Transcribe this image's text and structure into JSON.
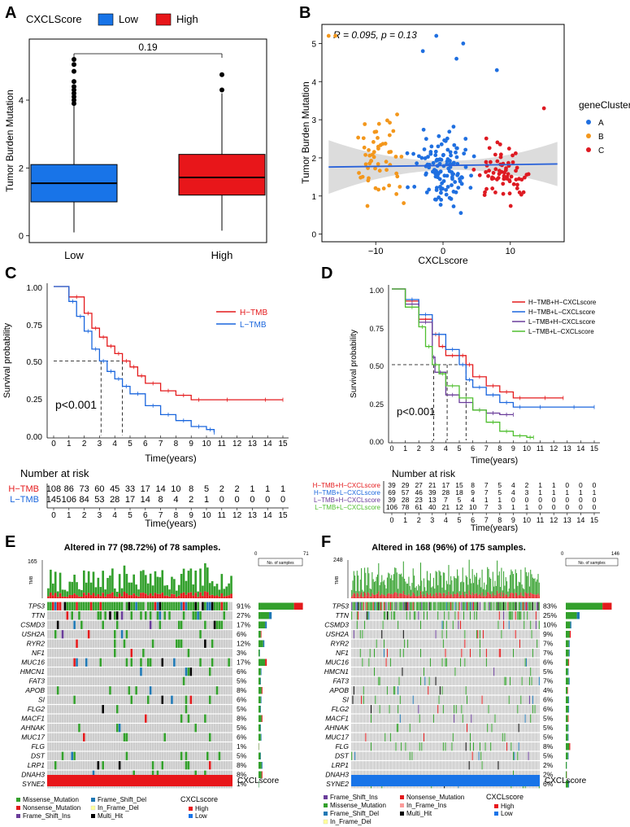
{
  "colors": {
    "low": "#1874e8",
    "high": "#e8161a",
    "gc_a": "#1f6fe0",
    "gc_b": "#f3971c",
    "gc_c": "#de1a22",
    "risk_h": "#e41a1c",
    "risk_l": "#1a66dd",
    "d1": "#e41a1c",
    "d2": "#1a66dd",
    "d3": "#6a3d9a",
    "d4": "#4fbf2f",
    "missense": "#33a02c",
    "nonsense": "#e31a1c",
    "fsins": "#6a3d9a",
    "fsdel": "#1f78b4",
    "ifdel": "#ffff99",
    "ifins": "#fb9a99",
    "multi": "#000000",
    "grey_cell": "#cccccc"
  },
  "chart_data": [
    {
      "panel": "A",
      "type": "box",
      "legend_title": "CXCLScore",
      "legend": [
        "Low",
        "High"
      ],
      "categories": [
        "Low",
        "High"
      ],
      "boxes": [
        {
          "name": "Low",
          "min": 0.1,
          "q1": 1.0,
          "median": 1.55,
          "q3": 2.1,
          "max": 4.3,
          "outliers": [
            5.2,
            5.05,
            4.85,
            4.55,
            4.4,
            4.3,
            4.2,
            4.1,
            4.0,
            3.9
          ]
        },
        {
          "name": "High",
          "min": 0.15,
          "q1": 1.2,
          "median": 1.72,
          "q3": 2.4,
          "max": 4.2,
          "outliers": [
            4.75,
            4.3
          ]
        }
      ],
      "pvalue": "0.19",
      "ylabel": "Tumor Burden Mutation",
      "yticks": [
        0,
        2,
        4
      ],
      "ylim": [
        -0.2,
        5.8
      ]
    },
    {
      "panel": "B",
      "type": "scatter",
      "annotation": "R = 0.095, p = 0.13",
      "xlabel": "CXCLscore",
      "ylabel": "Tumor Burden Mutation",
      "xticks": [
        -10,
        0,
        10
      ],
      "yticks": [
        0,
        1,
        2,
        3,
        4,
        5
      ],
      "xlim": [
        -18,
        18
      ],
      "ylim": [
        -0.2,
        5.5
      ],
      "legend_title": "geneCluster",
      "legend": [
        "A",
        "B",
        "C"
      ],
      "fit": {
        "x0": -17,
        "y0": 1.76,
        "x1": 17,
        "y1": 1.84
      }
    },
    {
      "panel": "C",
      "type": "km",
      "ylabel": "Survival probability",
      "xlabel": "Time(years)",
      "xticks": [
        "0",
        "1",
        "2",
        "3",
        "4",
        "5",
        "6",
        "7",
        "8",
        "9",
        "10",
        "11",
        "12",
        "13",
        "14",
        "15"
      ],
      "yticks": [
        "0.00",
        "0.25",
        "0.50",
        "0.75",
        "1.00"
      ],
      "pvalue": "p<0.001",
      "legend": [
        "H−TMB",
        "L−TMB"
      ],
      "median_times": [
        3.1,
        4.5
      ],
      "series": [
        {
          "name": "H-TMB",
          "t": [
            0,
            1,
            2,
            2.5,
            3,
            3.5,
            4,
            4.5,
            5,
            5.5,
            6,
            7,
            8,
            9,
            10,
            12.7,
            15
          ],
          "s": [
            1,
            0.93,
            0.82,
            0.72,
            0.66,
            0.6,
            0.55,
            0.5,
            0.46,
            0.4,
            0.35,
            0.3,
            0.27,
            0.24,
            0.24,
            0.24,
            0.24
          ]
        },
        {
          "name": "L-TMB",
          "t": [
            0,
            1,
            1.5,
            2,
            2.5,
            3,
            3.5,
            4,
            4.5,
            5,
            6,
            7,
            8,
            9,
            10,
            10.5
          ],
          "s": [
            1,
            0.9,
            0.8,
            0.7,
            0.58,
            0.5,
            0.43,
            0.38,
            0.33,
            0.28,
            0.2,
            0.14,
            0.1,
            0.06,
            0.04,
            0.02
          ]
        }
      ],
      "risk_title": "Number at risk",
      "risk_labels": [
        "H−TMB",
        "L−TMB"
      ],
      "risk_values": [
        [
          "108",
          "86",
          "73",
          "60",
          "45",
          "33",
          "17",
          "14",
          "10",
          "8",
          "5",
          "2",
          "2",
          "1",
          "1",
          "1"
        ],
        [
          "145",
          "106",
          "84",
          "53",
          "28",
          "17",
          "14",
          "8",
          "4",
          "2",
          "1",
          "0",
          "0",
          "0",
          "0",
          "0"
        ]
      ]
    },
    {
      "panel": "D",
      "type": "km",
      "ylabel": "Survival probability",
      "xlabel": "Time(years)",
      "xticks": [
        "0",
        "1",
        "2",
        "3",
        "4",
        "5",
        "6",
        "7",
        "8",
        "9",
        "10",
        "11",
        "12",
        "13",
        "14",
        "15"
      ],
      "yticks": [
        "0.00",
        "0.25",
        "0.50",
        "0.75",
        "1.00"
      ],
      "pvalue": "p<0.001",
      "legend": [
        "H−TMB+H−CXCLscore",
        "H−TMB+L−CXCLscore",
        "L−TMB+H−CXCLscore",
        "L−TMB+L−CXCLscore"
      ],
      "median_times": [
        3.1,
        4.1,
        5.5
      ],
      "series": [
        {
          "name": "H-TMB+H-CXCLscore",
          "t": [
            0,
            1,
            2,
            3,
            3.5,
            4,
            5,
            5.5,
            6,
            7,
            8,
            9,
            10,
            12.7
          ],
          "s": [
            1,
            0.92,
            0.8,
            0.7,
            0.62,
            0.56,
            0.56,
            0.5,
            0.42,
            0.36,
            0.32,
            0.28,
            0.28,
            0.28
          ]
        },
        {
          "name": "H-TMB+L-CXCLscore",
          "t": [
            0,
            1,
            2,
            3,
            4,
            5,
            5.5,
            6,
            7,
            8,
            9,
            10,
            12,
            15
          ],
          "s": [
            1,
            0.93,
            0.83,
            0.7,
            0.6,
            0.5,
            0.4,
            0.35,
            0.3,
            0.25,
            0.22,
            0.22,
            0.22,
            0.22
          ]
        },
        {
          "name": "L-TMB+H-CXCLscore",
          "t": [
            0,
            1,
            2,
            3,
            3.2,
            4,
            5,
            6,
            7,
            8,
            9
          ],
          "s": [
            1,
            0.9,
            0.78,
            0.55,
            0.45,
            0.3,
            0.25,
            0.2,
            0.18,
            0.17,
            0.17
          ]
        },
        {
          "name": "L-TMB+L-CXCLscore",
          "t": [
            0,
            1,
            2,
            2.5,
            3,
            3.5,
            4,
            5,
            6,
            7,
            8,
            9,
            10,
            10.5
          ],
          "s": [
            1,
            0.88,
            0.75,
            0.62,
            0.5,
            0.44,
            0.36,
            0.28,
            0.2,
            0.12,
            0.06,
            0.03,
            0.02,
            0.02
          ]
        }
      ],
      "risk_title": "Number at risk",
      "risk_labels": [
        "H−TMB+H−CXCLscore",
        "H−TMB+L−CXCLscore",
        "L−TMB+H−CXCLscore",
        "L−TMB+L−CXCLscore"
      ],
      "risk_values": [
        [
          "39",
          "29",
          "27",
          "21",
          "17",
          "15",
          "8",
          "7",
          "5",
          "4",
          "2",
          "1",
          "1",
          "0",
          "0",
          "0"
        ],
        [
          "69",
          "57",
          "46",
          "39",
          "28",
          "18",
          "9",
          "7",
          "5",
          "4",
          "3",
          "1",
          "1",
          "1",
          "1",
          "1"
        ],
        [
          "39",
          "28",
          "23",
          "13",
          "7",
          "5",
          "4",
          "1",
          "1",
          "0",
          "0",
          "0",
          "0",
          "0",
          "0",
          "0"
        ],
        [
          "106",
          "78",
          "61",
          "40",
          "21",
          "12",
          "10",
          "7",
          "3",
          "1",
          "1",
          "0",
          "0",
          "0",
          "0",
          "0"
        ]
      ]
    },
    {
      "panel": "E",
      "type": "oncoplot",
      "title": "Altered in 77 (98.72%) of 78 samples.",
      "tmb_max": "165",
      "tmb_label": "TMB",
      "nsamples_max": "71",
      "nsamples_zero": "0",
      "nsamples_label": "No. of samples",
      "genes": [
        "TP53",
        "TTN",
        "CSMD3",
        "USH2A",
        "RYR2",
        "NF1",
        "MUC16",
        "HMCN1",
        "FAT3",
        "APOB",
        "SI",
        "FLG2",
        "MACF1",
        "AHNAK",
        "MUC17",
        "FLG",
        "DST",
        "LRP1",
        "DNAH3",
        "SYNE2"
      ],
      "pct": [
        "91%",
        "27%",
        "17%",
        "6%",
        "12%",
        "3%",
        "17%",
        "6%",
        "5%",
        "8%",
        "6%",
        "5%",
        "8%",
        "5%",
        "6%",
        "1%",
        "5%",
        "8%",
        "8%",
        "1%"
      ],
      "score_label": "CXCLscore",
      "legend_items": [
        "Missense_Mutation",
        "Nonsense_Mutation",
        "Frame_Shift_Ins",
        "Frame_Shift_Del",
        "In_Frame_Del",
        "Multi_Hit"
      ],
      "legend_title": "CXCLscore",
      "score_levels": [
        "High",
        "Low"
      ]
    },
    {
      "panel": "F",
      "type": "oncoplot",
      "title": "Altered in 168 (96%) of 175 samples.",
      "tmb_max": "248",
      "tmb_label": "TMB",
      "nsamples_max": "146",
      "nsamples_zero": "0",
      "nsamples_label": "No. of samples",
      "genes": [
        "TP53",
        "TTN",
        "CSMD3",
        "USH2A",
        "RYR2",
        "NF1",
        "MUC16",
        "HMCN1",
        "FAT3",
        "APOB",
        "SI",
        "FLG2",
        "MACF1",
        "AHNAK",
        "MUC17",
        "FLG",
        "DST",
        "LRP1",
        "DNAH3",
        "SYNE2"
      ],
      "pct": [
        "83%",
        "25%",
        "10%",
        "9%",
        "7%",
        "7%",
        "6%",
        "5%",
        "7%",
        "4%",
        "6%",
        "6%",
        "5%",
        "5%",
        "5%",
        "8%",
        "5%",
        "2%",
        "2%",
        "6%"
      ],
      "score_label": "CXCLscore",
      "legend_items": [
        "Frame_Shift_Ins",
        "Missense_Mutation",
        "Frame_Shift_Del",
        "In_Frame_Del",
        "Nonsense_Mutation",
        "In_Frame_Ins",
        "Multi_Hit"
      ],
      "legend_title": "CXCLscore",
      "score_levels": [
        "High",
        "Low"
      ]
    }
  ]
}
